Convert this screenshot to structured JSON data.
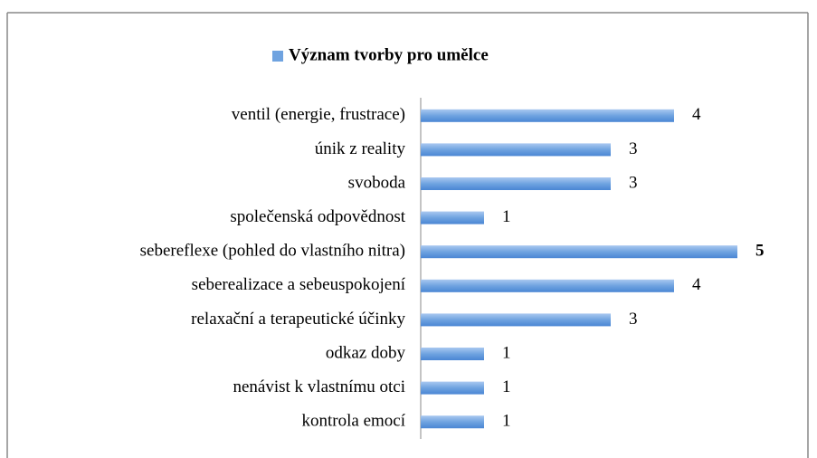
{
  "chart_data": {
    "type": "bar",
    "orientation": "horizontal",
    "categories": [
      "ventil (energie, frustrace)",
      "únik z reality",
      "svoboda",
      "společenská odpovědnost",
      "sebereflexe (pohled do vlastního nitra)",
      "seberealizace a sebeuspokojení",
      "relaxační a terapeutické účinky",
      "odkaz doby",
      "nenávist k vlastnímu otci",
      "kontrola emocí"
    ],
    "series": [
      {
        "name": "Význam tvorby pro umělce",
        "color": "#6fa3e0",
        "values": [
          4,
          3,
          3,
          1,
          5,
          4,
          3,
          1,
          1,
          1
        ]
      }
    ],
    "value_label_colors": [
      "#e0312a",
      "#000000",
      "#000000",
      "#000000",
      "#e0312a",
      "#e0312a",
      "#000000",
      "#000000",
      "#000000",
      "#000000"
    ],
    "value_label_weights": [
      "normal",
      "normal",
      "normal",
      "normal",
      "bold",
      "normal",
      "normal",
      "normal",
      "normal",
      "normal"
    ],
    "xlim": [
      0,
      5
    ],
    "legend": "top"
  }
}
